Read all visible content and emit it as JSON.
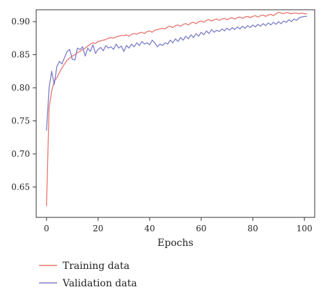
{
  "chart_data": {
    "type": "line",
    "title": "",
    "xlabel": "Epochs",
    "ylabel": "",
    "xlim": [
      -4,
      104
    ],
    "ylim": [
      0.604,
      0.918
    ],
    "xticks": [
      0,
      20,
      40,
      60,
      80,
      100
    ],
    "yticks": [
      0.65,
      0.7,
      0.75,
      0.8,
      0.85,
      0.9
    ],
    "ytick_labels": [
      "0.65",
      "0.70",
      "0.75",
      "0.80",
      "0.85",
      "0.90"
    ],
    "grid": false,
    "legend_position": "bottom-left",
    "series": [
      {
        "name": "Training data",
        "color": "#e8736c",
        "x": [
          0,
          1,
          2,
          3,
          4,
          5,
          6,
          7,
          8,
          9,
          10,
          11,
          12,
          13,
          14,
          15,
          16,
          17,
          18,
          19,
          20,
          21,
          22,
          23,
          24,
          25,
          26,
          27,
          28,
          29,
          30,
          31,
          32,
          33,
          34,
          35,
          36,
          37,
          38,
          39,
          40,
          41,
          42,
          43,
          44,
          45,
          46,
          47,
          48,
          49,
          50,
          51,
          52,
          53,
          54,
          55,
          56,
          57,
          58,
          59,
          60,
          61,
          62,
          63,
          64,
          65,
          66,
          67,
          68,
          69,
          70,
          71,
          72,
          73,
          74,
          75,
          76,
          77,
          78,
          79,
          80,
          81,
          82,
          83,
          84,
          85,
          86,
          87,
          88,
          89,
          90,
          91,
          92,
          93,
          94,
          95,
          96,
          97,
          98,
          99,
          100,
          101
        ],
        "y": [
          0.621,
          0.77,
          0.795,
          0.81,
          0.815,
          0.823,
          0.83,
          0.836,
          0.842,
          0.845,
          0.848,
          0.85,
          0.853,
          0.855,
          0.858,
          0.86,
          0.863,
          0.866,
          0.868,
          0.867,
          0.87,
          0.871,
          0.872,
          0.873,
          0.875,
          0.876,
          0.875,
          0.877,
          0.878,
          0.879,
          0.879,
          0.88,
          0.878,
          0.881,
          0.882,
          0.881,
          0.883,
          0.884,
          0.882,
          0.885,
          0.886,
          0.884,
          0.887,
          0.888,
          0.889,
          0.89,
          0.889,
          0.892,
          0.893,
          0.891,
          0.894,
          0.895,
          0.893,
          0.896,
          0.897,
          0.895,
          0.898,
          0.899,
          0.897,
          0.9,
          0.901,
          0.899,
          0.902,
          0.903,
          0.901,
          0.903,
          0.904,
          0.902,
          0.904,
          0.905,
          0.903,
          0.905,
          0.906,
          0.904,
          0.906,
          0.907,
          0.905,
          0.907,
          0.908,
          0.906,
          0.908,
          0.909,
          0.907,
          0.909,
          0.91,
          0.908,
          0.91,
          0.911,
          0.909,
          0.912,
          0.914,
          0.913,
          0.912,
          0.914,
          0.913,
          0.912,
          0.913,
          0.913,
          0.912,
          0.913,
          0.912,
          0.912
        ]
      },
      {
        "name": "Validation data",
        "color": "#7b7cc8",
        "x": [
          0,
          1,
          2,
          3,
          4,
          5,
          6,
          7,
          8,
          9,
          10,
          11,
          12,
          13,
          14,
          15,
          16,
          17,
          18,
          19,
          20,
          21,
          22,
          23,
          24,
          25,
          26,
          27,
          28,
          29,
          30,
          31,
          32,
          33,
          34,
          35,
          36,
          37,
          38,
          39,
          40,
          41,
          42,
          43,
          44,
          45,
          46,
          47,
          48,
          49,
          50,
          51,
          52,
          53,
          54,
          55,
          56,
          57,
          58,
          59,
          60,
          61,
          62,
          63,
          64,
          65,
          66,
          67,
          68,
          69,
          70,
          71,
          72,
          73,
          74,
          75,
          76,
          77,
          78,
          79,
          80,
          81,
          82,
          83,
          84,
          85,
          86,
          87,
          88,
          89,
          90,
          91,
          92,
          93,
          94,
          95,
          96,
          97,
          98,
          99,
          100,
          101
        ],
        "y": [
          0.735,
          0.8,
          0.825,
          0.805,
          0.832,
          0.84,
          0.836,
          0.846,
          0.855,
          0.858,
          0.843,
          0.842,
          0.86,
          0.858,
          0.862,
          0.848,
          0.86,
          0.855,
          0.865,
          0.852,
          0.858,
          0.861,
          0.856,
          0.864,
          0.86,
          0.862,
          0.858,
          0.866,
          0.86,
          0.863,
          0.855,
          0.864,
          0.86,
          0.866,
          0.862,
          0.868,
          0.864,
          0.87,
          0.866,
          0.868,
          0.865,
          0.872,
          0.868,
          0.862,
          0.866,
          0.864,
          0.868,
          0.866,
          0.872,
          0.868,
          0.874,
          0.87,
          0.876,
          0.872,
          0.878,
          0.874,
          0.88,
          0.876,
          0.882,
          0.878,
          0.884,
          0.88,
          0.886,
          0.882,
          0.888,
          0.884,
          0.887,
          0.885,
          0.889,
          0.886,
          0.89,
          0.887,
          0.891,
          0.888,
          0.892,
          0.889,
          0.893,
          0.89,
          0.894,
          0.891,
          0.895,
          0.892,
          0.896,
          0.893,
          0.897,
          0.894,
          0.898,
          0.895,
          0.899,
          0.896,
          0.9,
          0.897,
          0.901,
          0.899,
          0.903,
          0.9,
          0.904,
          0.902,
          0.906,
          0.907,
          0.908,
          0.908
        ]
      }
    ]
  }
}
